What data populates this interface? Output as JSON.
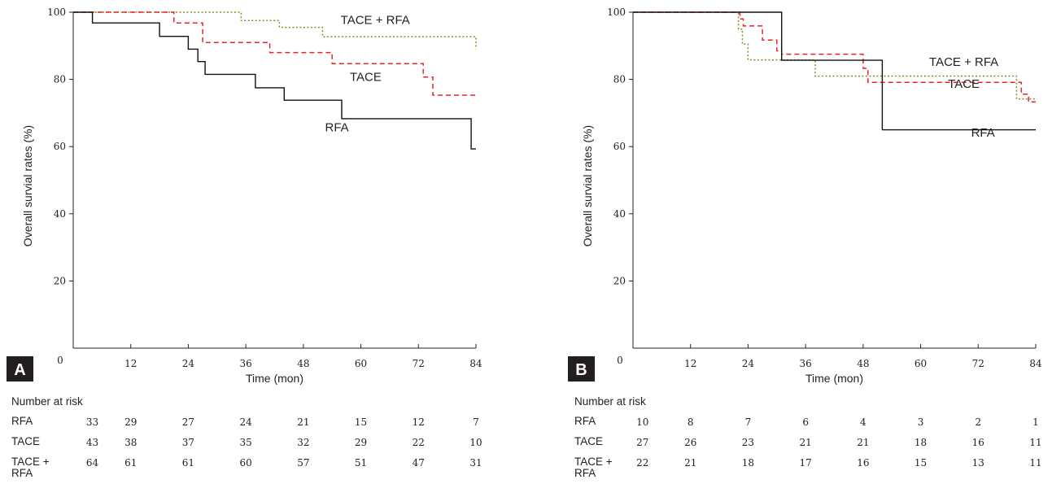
{
  "panels_meta": {
    "risk_title": "Number at risk"
  },
  "chart_data": [
    {
      "type": "line",
      "panel": "A",
      "xlabel": "Time (mon)",
      "ylabel": "Overall survial rates  (%)",
      "xlim": [
        0,
        84
      ],
      "ylim": [
        0,
        100
      ],
      "xticks": [
        0,
        12,
        24,
        36,
        48,
        60,
        72,
        84
      ],
      "yticks": [
        20,
        40,
        60,
        80,
        100
      ],
      "series": [
        {
          "name": "TACE + RFA",
          "style": "dotted",
          "color": "#8a8a2a",
          "x": [
            0,
            35,
            35,
            43,
            43,
            52,
            52,
            84,
            84
          ],
          "y": [
            100,
            100,
            97.5,
            97.5,
            95.5,
            95.5,
            92.7,
            92.7,
            89
          ]
        },
        {
          "name": "TACE",
          "style": "dashed",
          "color": "#e8232a",
          "x": [
            0,
            3.5,
            3.5,
            21,
            21,
            27,
            27,
            41,
            41,
            54,
            54,
            73,
            73,
            75,
            75,
            84
          ],
          "y": [
            100,
            100,
            100,
            100,
            96.8,
            96.8,
            91,
            91,
            88,
            88,
            84.7,
            84.7,
            80.7,
            80.7,
            75.3,
            75.3
          ]
        },
        {
          "name": "RFA",
          "style": "solid",
          "color": "#111111",
          "x": [
            0,
            4,
            4,
            18,
            18,
            24,
            24,
            26,
            26,
            27.5,
            27.5,
            38,
            38,
            44,
            44,
            56,
            56,
            83,
            83,
            84
          ],
          "y": [
            100,
            100,
            96.8,
            96.8,
            92.8,
            92.8,
            89,
            89,
            85.3,
            85.3,
            81.5,
            81.5,
            77.5,
            77.5,
            73.8,
            73.8,
            68.3,
            68.3,
            59.3,
            59.3
          ]
        }
      ],
      "curve_labels": [
        {
          "series": "TACE + RFA",
          "x": 63,
          "y": 96.5
        },
        {
          "series": "TACE",
          "x": 61,
          "y": 79.5
        },
        {
          "series": "RFA",
          "x": 55,
          "y": 64.5
        }
      ],
      "risk_times": [
        4,
        12,
        24,
        36,
        48,
        60,
        72,
        84
      ],
      "risk": [
        {
          "label": "RFA",
          "values": [
            33,
            29,
            27,
            24,
            21,
            15,
            12,
            7
          ]
        },
        {
          "label": "TACE",
          "values": [
            43,
            38,
            37,
            35,
            32,
            29,
            22,
            10
          ]
        },
        {
          "label": "TACE + RFA",
          "values": [
            64,
            61,
            61,
            60,
            57,
            51,
            47,
            31
          ]
        }
      ]
    },
    {
      "type": "line",
      "panel": "B",
      "xlabel": "Time (mon)",
      "ylabel": "Overall survial rates  (%)",
      "xlim": [
        0,
        84
      ],
      "ylim": [
        0,
        100
      ],
      "xticks": [
        0,
        12,
        24,
        36,
        48,
        60,
        72,
        84
      ],
      "yticks": [
        20,
        40,
        60,
        80,
        100
      ],
      "series": [
        {
          "name": "TACE + RFA",
          "style": "dotted",
          "color": "#8a8a2a",
          "x": [
            0,
            22,
            22,
            22.8,
            22.8,
            24,
            24,
            38,
            38,
            80,
            80,
            84
          ],
          "y": [
            100,
            100,
            95,
            95,
            90.5,
            90.5,
            85.8,
            85.8,
            81,
            81,
            74.2,
            74.2
          ]
        },
        {
          "name": "TACE",
          "style": "dashed",
          "color": "#e8232a",
          "x": [
            0,
            22.3,
            22.3,
            23,
            23,
            27,
            27,
            30,
            30,
            31,
            31,
            48,
            48,
            49,
            49,
            81,
            81,
            82.5,
            82.5,
            84
          ],
          "y": [
            100,
            100,
            98,
            98,
            95.9,
            95.9,
            91.7,
            91.7,
            88.5,
            88.5,
            87.5,
            87.5,
            83.3,
            83.3,
            79.1,
            79.1,
            75.6,
            75.6,
            73.3,
            73.3
          ]
        },
        {
          "name": "RFA",
          "style": "solid",
          "color": "#111111",
          "x": [
            0,
            31,
            31,
            52,
            52,
            84
          ],
          "y": [
            100,
            100,
            85.7,
            85.7,
            65,
            65
          ]
        }
      ],
      "curve_labels": [
        {
          "series": "TACE + RFA",
          "x": 69,
          "y": 84
        },
        {
          "series": "TACE",
          "x": 69,
          "y": 77.5
        },
        {
          "series": "RFA",
          "x": 73,
          "y": 63
        }
      ],
      "risk_times": [
        2,
        12,
        24,
        36,
        48,
        60,
        72,
        84
      ],
      "risk": [
        {
          "label": "RFA",
          "values": [
            10,
            8,
            7,
            6,
            4,
            3,
            2,
            1
          ]
        },
        {
          "label": "TACE",
          "values": [
            27,
            26,
            23,
            21,
            21,
            18,
            16,
            11
          ]
        },
        {
          "label": "TACE + RFA",
          "values": [
            22,
            21,
            18,
            17,
            16,
            15,
            13,
            11
          ]
        }
      ]
    }
  ]
}
